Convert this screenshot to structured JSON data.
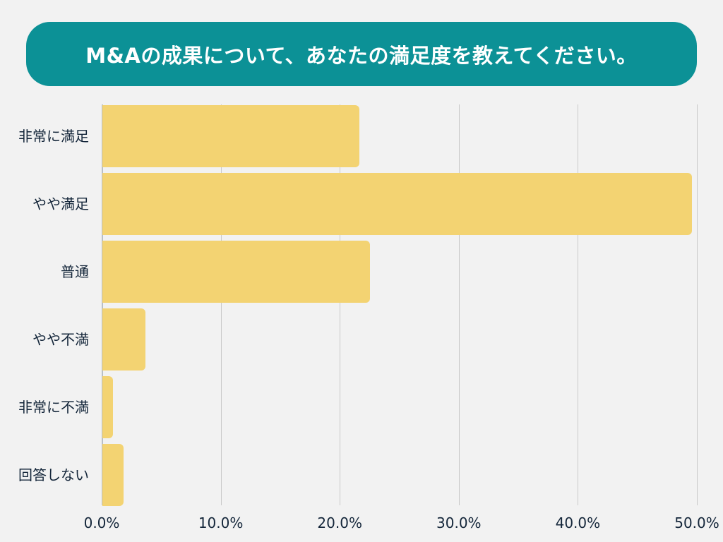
{
  "title": "M&Aの成果について、あなたの満足度を教えてください。",
  "colors": {
    "title_bg": "#0c9196",
    "title_text": "#ffffff",
    "bar": "#f3d372",
    "background": "#f2f2f2",
    "grid": "#c9c9c9",
    "text": "#14263a"
  },
  "chart_data": {
    "type": "bar",
    "orientation": "horizontal",
    "title": "M&Aの成果について、あなたの満足度を教えてください。",
    "xlabel": "",
    "ylabel": "",
    "categories": [
      "非常に満足",
      "やや満足",
      "普通",
      "やや不満",
      "非常に不満",
      "回答しない"
    ],
    "values": [
      21.6,
      49.5,
      22.5,
      3.6,
      0.9,
      1.8
    ],
    "unit": "%",
    "xlim": [
      0,
      50
    ],
    "xticks": [
      "0.0%",
      "10.0%",
      "20.0%",
      "30.0%",
      "40.0%",
      "50.0%"
    ],
    "grid": true,
    "legend": null
  }
}
